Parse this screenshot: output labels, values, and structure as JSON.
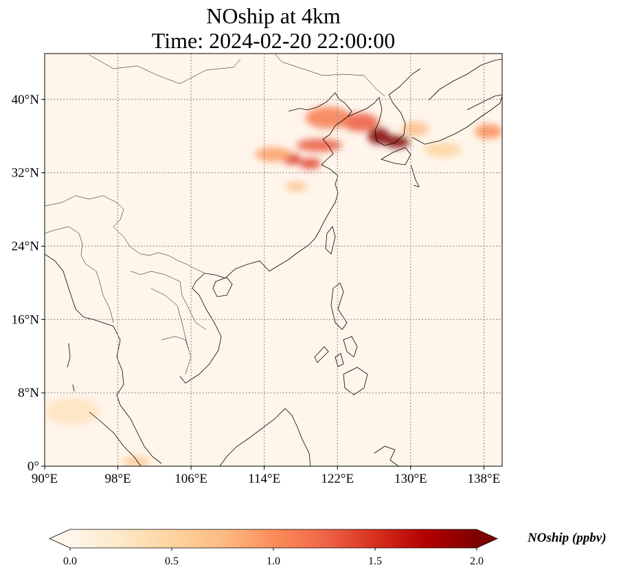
{
  "title": {
    "line1": "NOship at 4km",
    "line2": "Time: 2024-02-20 22:00:00"
  },
  "map": {
    "lon_range": [
      90,
      140
    ],
    "lat_range": [
      0,
      45
    ],
    "lon_ticks": [
      {
        "value": 90,
        "label": "90°E"
      },
      {
        "value": 98,
        "label": "98°E"
      },
      {
        "value": 106,
        "label": "106°E"
      },
      {
        "value": 114,
        "label": "114°E"
      },
      {
        "value": 122,
        "label": "122°E"
      },
      {
        "value": 130,
        "label": "130°E"
      },
      {
        "value": 138,
        "label": "138°E"
      }
    ],
    "lat_ticks": [
      {
        "value": 0,
        "label": "0°"
      },
      {
        "value": 8,
        "label": "8°N"
      },
      {
        "value": 16,
        "label": "16°N"
      },
      {
        "value": 24,
        "label": "24°N"
      },
      {
        "value": 32,
        "label": "32°N"
      },
      {
        "value": 40,
        "label": "40°N"
      }
    ],
    "gridlines": true,
    "colormap": "OrRd",
    "background_color": "#fff5eb",
    "plumes": [
      {
        "lon": 126.5,
        "lat": 36.0,
        "value": 2.0,
        "rx": 1.2,
        "ry": 0.9
      },
      {
        "lon": 128.5,
        "lat": 35.4,
        "value": 2.0,
        "rx": 1.4,
        "ry": 0.7
      },
      {
        "lon": 124.5,
        "lat": 37.5,
        "value": 1.3,
        "rx": 2.0,
        "ry": 1.0
      },
      {
        "lon": 121.0,
        "lat": 38.0,
        "value": 1.1,
        "rx": 2.5,
        "ry": 1.2
      },
      {
        "lon": 120.0,
        "lat": 35.0,
        "value": 1.3,
        "rx": 2.5,
        "ry": 0.7
      },
      {
        "lon": 117.0,
        "lat": 33.5,
        "value": 1.5,
        "rx": 1.0,
        "ry": 0.6
      },
      {
        "lon": 119.0,
        "lat": 33.0,
        "value": 1.4,
        "rx": 1.2,
        "ry": 0.6
      },
      {
        "lon": 115.0,
        "lat": 34.0,
        "value": 0.9,
        "rx": 2.0,
        "ry": 0.8
      },
      {
        "lon": 117.5,
        "lat": 30.5,
        "value": 0.7,
        "rx": 1.2,
        "ry": 0.5
      },
      {
        "lon": 130.5,
        "lat": 36.8,
        "value": 0.7,
        "rx": 1.5,
        "ry": 0.8
      },
      {
        "lon": 138.5,
        "lat": 36.5,
        "value": 1.0,
        "rx": 1.5,
        "ry": 0.8
      },
      {
        "lon": 133.5,
        "lat": 34.5,
        "value": 0.5,
        "rx": 2.0,
        "ry": 0.8
      },
      {
        "lon": 93.0,
        "lat": 6.0,
        "value": 0.3,
        "rx": 3.0,
        "ry": 1.5
      },
      {
        "lon": 100.0,
        "lat": 0.5,
        "value": 0.6,
        "rx": 1.5,
        "ry": 0.6
      }
    ]
  },
  "colorbar": {
    "label": "NOship (ppbv)",
    "vmin": 0.0,
    "vmax": 2.0,
    "extend": "both",
    "ticks": [
      {
        "value": 0.0,
        "label": "0.0"
      },
      {
        "value": 0.5,
        "label": "0.5"
      },
      {
        "value": 1.0,
        "label": "1.0"
      },
      {
        "value": 1.5,
        "label": "1.5"
      },
      {
        "value": 2.0,
        "label": "2.0"
      }
    ],
    "colors": [
      "#fff7ec",
      "#fee8c8",
      "#fdd49e",
      "#fdbb84",
      "#fc8d59",
      "#ef6548",
      "#d7301f",
      "#b30000",
      "#7f0000"
    ]
  }
}
